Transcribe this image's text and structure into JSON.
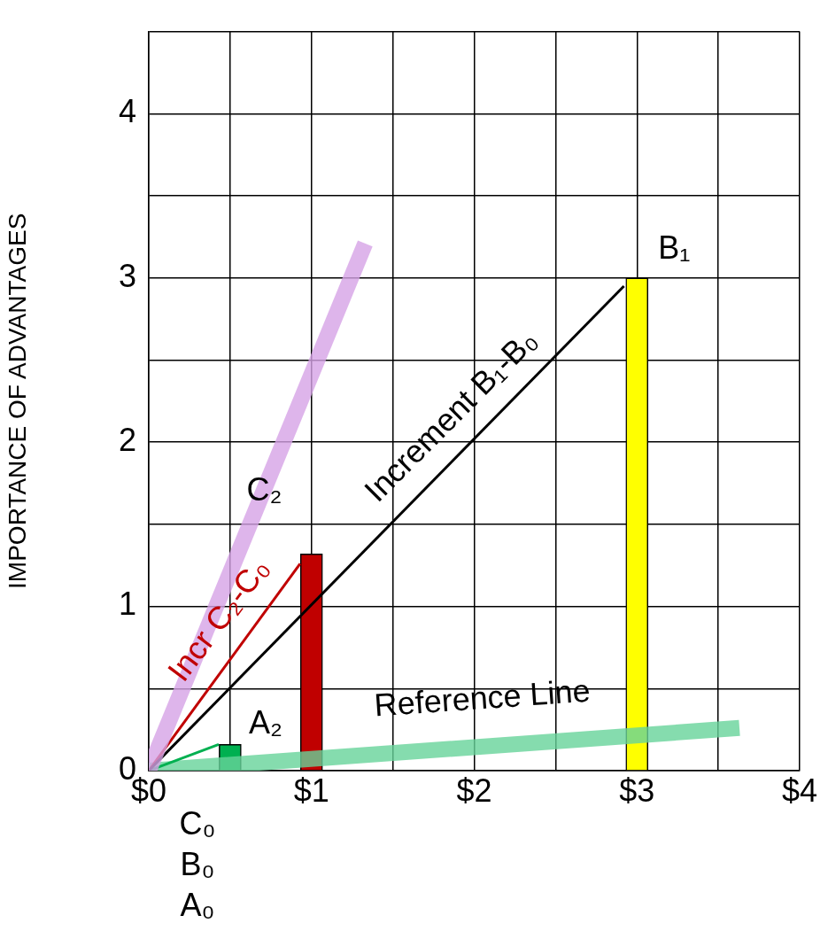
{
  "chart_data": {
    "type": "line",
    "ylabel": "IMPORTANCE OF ADVANTAGES",
    "xlim": [
      0,
      4
    ],
    "xticks": [
      {
        "value": 0,
        "label": "$0"
      },
      {
        "value": 0.5,
        "label": null
      },
      {
        "value": 1,
        "label": "$1"
      },
      {
        "value": 1.5,
        "label": null
      },
      {
        "value": 2,
        "label": "$2"
      },
      {
        "value": 2.5,
        "label": null
      },
      {
        "value": 3,
        "label": "$3"
      },
      {
        "value": 3.5,
        "label": null
      },
      {
        "value": 4,
        "label": "$4"
      }
    ],
    "ylim": [
      0,
      4.5
    ],
    "yticks": [
      0,
      {
        "value": 0.5,
        "label": null
      },
      1,
      {
        "value": 1.5,
        "label": null
      },
      2,
      {
        "value": 2.5,
        "label": null
      },
      3,
      {
        "value": 3.5,
        "label": null
      },
      4,
      {
        "value": 4.5,
        "label": null
      }
    ],
    "grid": true,
    "legend": false,
    "marker": "none",
    "series": [
      {
        "type": "bar",
        "x": [
          0.5,
          1,
          3
        ],
        "values": [
          0.16,
          1.32,
          3.0
        ],
        "colors": [
          "#00b050",
          "#c00000",
          "#ffff00"
        ]
      },
      {
        "x": [
          0,
          1.33
        ],
        "values": [
          0,
          3.21
        ],
        "color": "#d6a3e6"
      },
      {
        "x": [
          0,
          2.92
        ],
        "values": [
          0,
          2.95
        ],
        "color": "#000000"
      },
      {
        "x": [
          0,
          0.93
        ],
        "values": [
          0,
          1.26
        ],
        "color": "#c00000"
      },
      {
        "x": [
          0,
          0.43
        ],
        "values": [
          0,
          0.16
        ],
        "color": "#00b050"
      },
      {
        "x": [
          0,
          3.63
        ],
        "values": [
          0,
          0.26
        ],
        "color": "#66d39a"
      }
    ],
    "annotations": [
      {
        "text": "B₁",
        "x": 3,
        "y": 3
      },
      {
        "text": "C₂",
        "x": 0.71,
        "y": 1.7
      },
      {
        "text": "A₂",
        "x": 0.5,
        "y": 0.16
      },
      {
        "text": "Increment B₁-B₀",
        "x": 2.0,
        "y": 2.02
      },
      {
        "text": "Incr C₂-C₀",
        "x": 0.59,
        "y": 0.8
      },
      {
        "text": "Reference Line",
        "x": 2.05,
        "y": 0.15
      },
      "C₀",
      "B₀",
      "A₀"
    ]
  }
}
